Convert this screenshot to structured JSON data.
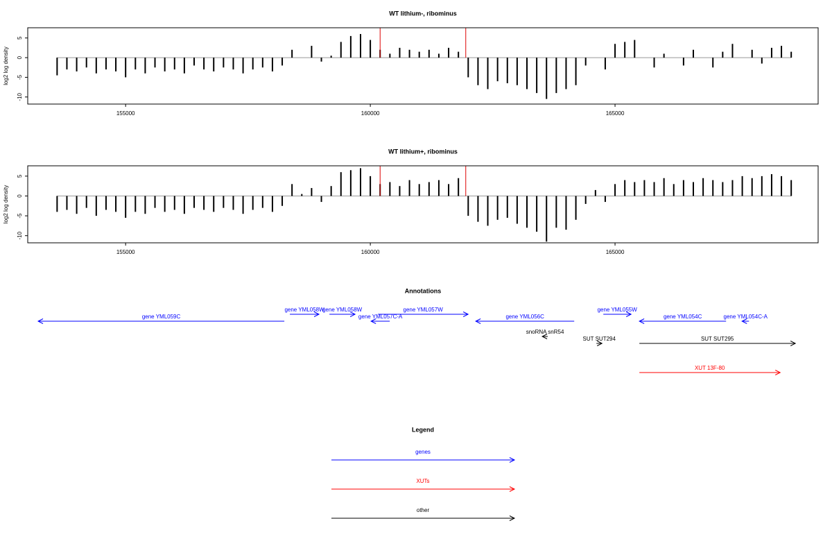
{
  "chart_data": [
    {
      "type": "bar",
      "title": "WT lithium-, ribominus",
      "y_label": "log2 log density",
      "color": "#000000",
      "x": [
        153600,
        153800,
        154000,
        154200,
        154400,
        154600,
        154800,
        155000,
        155200,
        155400,
        155600,
        155800,
        156000,
        156200,
        156400,
        156600,
        156800,
        157000,
        157200,
        157400,
        157600,
        157800,
        158000,
        158200,
        158400,
        158600,
        158800,
        159000,
        159200,
        159400,
        159600,
        159800,
        160000,
        160200,
        160400,
        160600,
        160800,
        161000,
        161200,
        161400,
        161600,
        161800,
        162000,
        162200,
        162400,
        162600,
        162800,
        163000,
        163200,
        163400,
        163600,
        163800,
        164000,
        164200,
        164400,
        164600,
        164800,
        165000,
        165200,
        165400,
        165600,
        165800,
        166000,
        166200,
        166400,
        166600,
        166800,
        167000,
        167200,
        167400,
        167600,
        167800,
        168000,
        168200,
        168400,
        168600
      ],
      "values": [
        -4.5,
        -3,
        -3.5,
        -2.5,
        -4,
        -3,
        -3.5,
        -5,
        -3,
        -4,
        -2.5,
        -3.5,
        -3,
        -4,
        -2,
        -3,
        -3.5,
        -2.5,
        -3,
        -4,
        -3,
        -2.5,
        -3.5,
        -2,
        2,
        0,
        3,
        -1,
        0.5,
        4,
        5.5,
        6,
        4.5,
        2,
        1,
        2.5,
        2,
        1.5,
        2,
        1,
        2.5,
        1.5,
        -5,
        -7,
        -8,
        -6,
        -6.5,
        -7,
        -8,
        -9,
        -10.5,
        -9,
        -8,
        -7,
        -2,
        0,
        -3,
        3.5,
        4,
        4.5,
        0,
        -2.5,
        1,
        0,
        -2,
        2,
        0,
        -2.5,
        1.5,
        3.5,
        0,
        2,
        -1.5,
        2.5,
        3,
        1.5
      ],
      "markers": {
        "color": "#dd0000",
        "x": [
          160200,
          161950
        ],
        "values": [
          7.5,
          7.5
        ]
      },
      "xlim": [
        153000,
        169150
      ],
      "ylim": [
        -11.8,
        7.6
      ],
      "xticks": [
        155000,
        160000,
        165000
      ],
      "yticks": [
        5,
        0,
        -5,
        -10
      ]
    },
    {
      "type": "bar",
      "title": "WT lithium+, ribominus",
      "y_label": "log2 log density",
      "color": "#000000",
      "x": [
        153600,
        153800,
        154000,
        154200,
        154400,
        154600,
        154800,
        155000,
        155200,
        155400,
        155600,
        155800,
        156000,
        156200,
        156400,
        156600,
        156800,
        157000,
        157200,
        157400,
        157600,
        157800,
        158000,
        158200,
        158400,
        158600,
        158800,
        159000,
        159200,
        159400,
        159600,
        159800,
        160000,
        160200,
        160400,
        160600,
        160800,
        161000,
        161200,
        161400,
        161600,
        161800,
        162000,
        162200,
        162400,
        162600,
        162800,
        163000,
        163200,
        163400,
        163600,
        163800,
        164000,
        164200,
        164400,
        164600,
        164800,
        165000,
        165200,
        165400,
        165600,
        165800,
        166000,
        166200,
        166400,
        166600,
        166800,
        167000,
        167200,
        167400,
        167600,
        167800,
        168000,
        168200,
        168400,
        168600
      ],
      "values": [
        -4,
        -3.5,
        -4.5,
        -3,
        -5,
        -3.5,
        -4,
        -5.5,
        -4,
        -4.5,
        -3,
        -4,
        -3.5,
        -4.5,
        -3,
        -3.5,
        -4,
        -3,
        -3.5,
        -4.5,
        -3.5,
        -3,
        -4,
        -2.5,
        3,
        0.5,
        2,
        -1.5,
        2.5,
        6,
        6.5,
        7,
        5,
        3,
        3.5,
        2.5,
        4,
        3,
        3.5,
        4,
        3,
        4.5,
        -5,
        -6.5,
        -7.5,
        -6,
        -5.5,
        -7,
        -8,
        -9,
        -11.5,
        -8,
        -8.5,
        -6,
        -2,
        1.5,
        -1.5,
        3,
        4,
        3.5,
        4,
        3.5,
        4.5,
        3,
        4,
        3.5,
        4.5,
        4,
        3.5,
        4,
        5,
        4.5,
        5,
        5.5,
        5,
        4
      ],
      "markers": {
        "color": "#dd0000",
        "x": [
          160200,
          161950
        ],
        "values": [
          7.5,
          7.5
        ]
      },
      "xlim": [
        153000,
        169150
      ],
      "ylim": [
        -11.8,
        7.6
      ],
      "xticks": [
        155000,
        160000,
        165000
      ],
      "yticks": [
        5,
        0,
        -5,
        -10
      ]
    }
  ],
  "annotations": {
    "title": "Annotations",
    "items": [
      {
        "label": "gene YML059C",
        "start": 158243,
        "end": 153213,
        "color": "#0000ff"
      },
      {
        "label": "gene YML058W",
        "start": 158356,
        "end": 158951,
        "color": "#0000ff"
      },
      {
        "label": "gene YML058W",
        "start": 159164,
        "end": 159688,
        "color": "#0000ff"
      },
      {
        "label": "gene YML057C-A",
        "start": 160397,
        "end": 160015,
        "color": "#0000ff"
      },
      {
        "label": "gene YML057W",
        "start": 160156,
        "end": 161998,
        "color": "#0000ff"
      },
      {
        "label": "gene YML056C",
        "start": 164166,
        "end": 162154,
        "color": "#0000ff"
      },
      {
        "label": "gene YML055W",
        "start": 164761,
        "end": 165328,
        "color": "#0000ff"
      },
      {
        "label": "gene YML054C",
        "start": 167269,
        "end": 165497,
        "color": "#0000ff"
      },
      {
        "label": "gene YML054C-A",
        "start": 167737,
        "end": 167595,
        "color": "#0000ff"
      },
      {
        "label": "snoRNA snR54",
        "start": 163626,
        "end": 163513,
        "color": "#000000"
      },
      {
        "label": "SUT SUT294",
        "start": 164620,
        "end": 164733,
        "color": "#000000"
      },
      {
        "label": "SUT SUT295",
        "start": 165497,
        "end": 168685,
        "color": "#000000"
      },
      {
        "label": "XUT 13F-80",
        "start": 165497,
        "end": 168374,
        "color": "#ff0000"
      }
    ]
  },
  "legend": {
    "title": "Legend",
    "items": [
      {
        "label": "genes",
        "color": "#0000ff"
      },
      {
        "label": "XUTs",
        "color": "#ff0000"
      },
      {
        "label": "other",
        "color": "#000000"
      }
    ]
  }
}
